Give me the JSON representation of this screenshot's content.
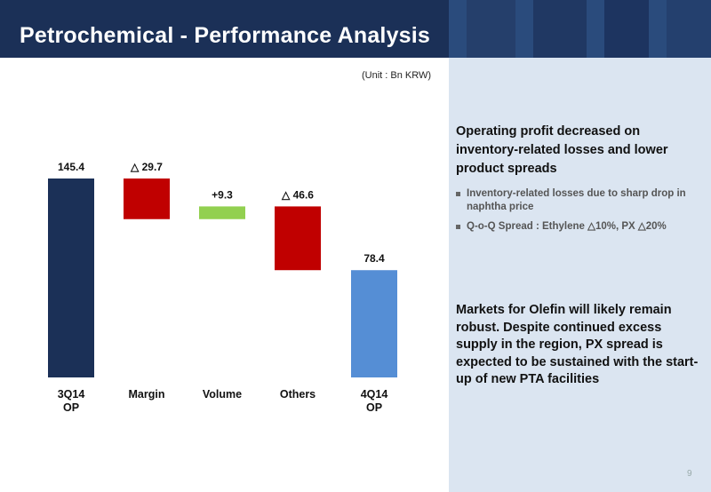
{
  "header": {
    "title": "Petrochemical - Performance Analysis"
  },
  "unit_note": "(Unit : Bn KRW)",
  "colors": {
    "start": "#1b3057",
    "decrease": "#c00000",
    "increase": "#92d050",
    "end": "#558ed5"
  },
  "chart_data": {
    "type": "bar",
    "subtype": "waterfall",
    "title": "",
    "unit": "Bn KRW",
    "categories": [
      [
        "3Q14",
        "OP"
      ],
      [
        "Margin"
      ],
      [
        "Volume"
      ],
      [
        "Others"
      ],
      [
        "4Q14",
        "OP"
      ]
    ],
    "steps": [
      {
        "kind": "total",
        "value": 145.4,
        "label": "145.4"
      },
      {
        "kind": "delta",
        "value": -29.7,
        "label": "△ 29.7"
      },
      {
        "kind": "delta",
        "value": 9.3,
        "label": "+9.3"
      },
      {
        "kind": "delta",
        "value": -46.6,
        "label": "△ 46.6"
      },
      {
        "kind": "total",
        "value": 78.4,
        "label": "78.4"
      }
    ],
    "ylim": [
      0,
      145.4
    ],
    "grid": false,
    "legend": "none"
  },
  "side": {
    "heading1": "Operating profit decreased on inventory-related losses and lower product spreads",
    "bullets": [
      "Inventory-related losses  due to sharp drop in naphtha price",
      "Q-o-Q Spread : Ethylene △10%, PX △20%"
    ],
    "heading2": "Markets for Olefin will likely remain robust. Despite continued excess supply in the region, PX spread is expected to be sustained with the start-up of new PTA facilities"
  },
  "page_number": "9"
}
